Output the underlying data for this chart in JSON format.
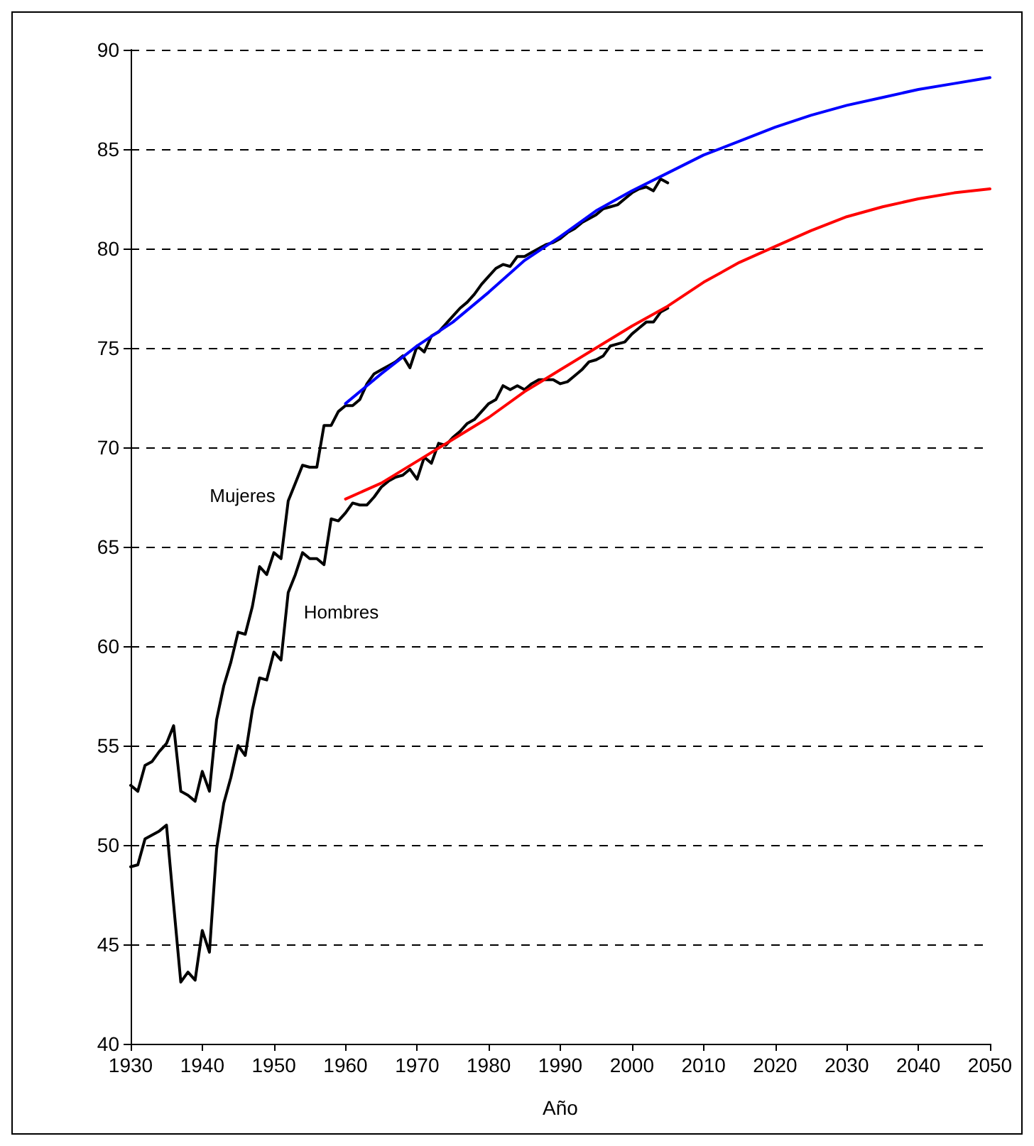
{
  "chart_data": {
    "type": "line",
    "xlabel": "Año",
    "xlim": [
      1930,
      2050
    ],
    "xticks": [
      1930,
      1940,
      1950,
      1960,
      1970,
      1980,
      1990,
      2000,
      2010,
      2020,
      2030,
      2040,
      2050
    ],
    "ylim": [
      40,
      90
    ],
    "yticks": [
      40,
      45,
      50,
      55,
      60,
      65,
      70,
      75,
      80,
      85,
      90
    ],
    "grid": "y",
    "marker": "none",
    "series": [
      {
        "name": "Mujeres",
        "color": "#000000",
        "x": [
          1930,
          1931,
          1932,
          1933,
          1934,
          1935,
          1936,
          1937,
          1938,
          1939,
          1940,
          1941,
          1942,
          1943,
          1944,
          1945,
          1946,
          1947,
          1948,
          1949,
          1950,
          1951,
          1952,
          1953,
          1954,
          1955,
          1956,
          1957,
          1958,
          1959,
          1960,
          1961,
          1962,
          1963,
          1964,
          1965,
          1966,
          1967,
          1968,
          1969,
          1970,
          1971,
          1972,
          1973,
          1974,
          1975,
          1976,
          1977,
          1978,
          1979,
          1980,
          1981,
          1982,
          1983,
          1984,
          1985,
          1986,
          1987,
          1988,
          1989,
          1990,
          1991,
          1992,
          1993,
          1994,
          1995,
          1996,
          1997,
          1998,
          1999,
          2000,
          2001,
          2002,
          2003,
          2004,
          2005
        ],
        "values": [
          53.0,
          52.7,
          54.0,
          54.2,
          54.7,
          55.1,
          56.0,
          52.7,
          52.5,
          52.2,
          53.7,
          52.7,
          56.3,
          58.0,
          59.2,
          60.7,
          60.6,
          62.0,
          64.0,
          63.6,
          64.7,
          64.4,
          67.3,
          68.2,
          69.1,
          69.0,
          69.0,
          71.1,
          71.1,
          71.8,
          72.1,
          72.1,
          72.4,
          73.2,
          73.7,
          73.9,
          74.1,
          74.3,
          74.6,
          74.0,
          75.1,
          74.8,
          75.6,
          75.8,
          76.2,
          76.6,
          77.0,
          77.3,
          77.7,
          78.2,
          78.6,
          79.0,
          79.2,
          79.1,
          79.6,
          79.6,
          79.8,
          80.0,
          80.2,
          80.3,
          80.5,
          80.8,
          81.0,
          81.3,
          81.5,
          81.7,
          82.0,
          82.1,
          82.2,
          82.5,
          82.8,
          83.0,
          83.1,
          82.9,
          83.5,
          83.3
        ]
      },
      {
        "name": "Hombres",
        "color": "#000000",
        "x": [
          1930,
          1931,
          1932,
          1933,
          1934,
          1935,
          1936,
          1937,
          1938,
          1939,
          1940,
          1941,
          1942,
          1943,
          1944,
          1945,
          1946,
          1947,
          1948,
          1949,
          1950,
          1951,
          1952,
          1953,
          1954,
          1955,
          1956,
          1957,
          1958,
          1959,
          1960,
          1961,
          1962,
          1963,
          1964,
          1965,
          1966,
          1967,
          1968,
          1969,
          1970,
          1971,
          1972,
          1973,
          1974,
          1975,
          1976,
          1977,
          1978,
          1979,
          1980,
          1981,
          1982,
          1983,
          1984,
          1985,
          1986,
          1987,
          1988,
          1989,
          1990,
          1991,
          1992,
          1993,
          1994,
          1995,
          1996,
          1997,
          1998,
          1999,
          2000,
          2001,
          2002,
          2003,
          2004,
          2005
        ],
        "values": [
          48.9,
          49.0,
          50.3,
          50.5,
          50.7,
          51.0,
          47.0,
          43.1,
          43.6,
          43.2,
          45.7,
          44.6,
          49.8,
          52.1,
          53.4,
          55.0,
          54.5,
          56.8,
          58.4,
          58.3,
          59.7,
          59.3,
          62.7,
          63.6,
          64.7,
          64.4,
          64.4,
          64.1,
          66.4,
          66.3,
          66.7,
          67.2,
          67.1,
          67.1,
          67.5,
          68.0,
          68.3,
          68.5,
          68.6,
          68.9,
          68.4,
          69.5,
          69.2,
          70.2,
          70.1,
          70.5,
          70.8,
          71.2,
          71.4,
          71.8,
          72.2,
          72.4,
          73.1,
          72.9,
          73.1,
          72.9,
          73.2,
          73.4,
          73.4,
          73.4,
          73.2,
          73.3,
          73.6,
          73.9,
          74.3,
          74.4,
          74.6,
          75.1,
          75.2,
          75.3,
          75.7,
          76.0,
          76.3,
          76.3,
          76.8,
          77.0
        ]
      },
      {
        "color": "#0000ff",
        "x": [
          1960,
          1965,
          1970,
          1975,
          1980,
          1985,
          1990,
          1995,
          2000,
          2005,
          2010,
          2015,
          2020,
          2025,
          2030,
          2035,
          2040,
          2045,
          2050
        ],
        "values": [
          72.2,
          73.7,
          75.1,
          76.3,
          77.8,
          79.4,
          80.6,
          81.9,
          82.9,
          83.8,
          84.7,
          85.4,
          86.1,
          86.7,
          87.2,
          87.6,
          88.0,
          88.3,
          88.6
        ]
      },
      {
        "color": "#ff0000",
        "x": [
          1960,
          1965,
          1970,
          1975,
          1980,
          1985,
          1990,
          1995,
          2000,
          2005,
          2010,
          2015,
          2020,
          2025,
          2030,
          2035,
          2040,
          2045,
          2050
        ],
        "values": [
          67.4,
          68.2,
          69.3,
          70.4,
          71.5,
          72.8,
          73.9,
          75.0,
          76.1,
          77.1,
          78.3,
          79.3,
          80.1,
          80.9,
          81.6,
          82.1,
          82.5,
          82.8,
          83.0
        ]
      }
    ]
  }
}
